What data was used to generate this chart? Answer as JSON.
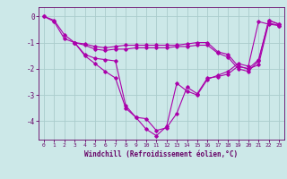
{
  "xlabel": "Windchill (Refroidissement éolien,°C)",
  "bg_color": "#cce8e8",
  "grid_color": "#aacccc",
  "line_color": "#aa00aa",
  "xlim": [
    -0.5,
    23.5
  ],
  "ylim": [
    -4.7,
    0.35
  ],
  "xticks": [
    0,
    1,
    2,
    3,
    4,
    5,
    6,
    7,
    8,
    9,
    10,
    11,
    12,
    13,
    14,
    15,
    16,
    17,
    18,
    19,
    20,
    21,
    22,
    23
  ],
  "yticks": [
    0,
    -1,
    -2,
    -3,
    -4
  ],
  "series": [
    [
      0.0,
      -0.15,
      -0.7,
      -1.0,
      -1.5,
      -1.8,
      -2.1,
      -2.35,
      -3.5,
      -3.85,
      -4.3,
      -4.55,
      -4.2,
      -2.55,
      -2.85,
      -3.0,
      -2.4,
      -2.25,
      -2.1,
      -1.8,
      -1.9,
      -0.2,
      -0.3,
      -0.35
    ],
    [
      0.0,
      -0.2,
      -0.85,
      -1.0,
      -1.45,
      -1.6,
      -1.65,
      -1.7,
      -3.4,
      -3.85,
      -3.9,
      -4.35,
      -4.25,
      -3.7,
      -2.7,
      -2.95,
      -2.35,
      -2.3,
      -2.2,
      -1.9,
      -2.0,
      -1.85,
      -0.25,
      -0.35
    ],
    [
      null,
      null,
      null,
      -1.0,
      -1.1,
      -1.25,
      -1.3,
      -1.25,
      -1.25,
      -1.2,
      -1.2,
      -1.2,
      -1.2,
      -1.15,
      -1.15,
      -1.1,
      -1.1,
      -1.4,
      -1.55,
      -2.0,
      -2.1,
      -1.7,
      -0.15,
      -0.3
    ],
    [
      null,
      null,
      null,
      -1.0,
      -1.05,
      -1.15,
      -1.2,
      -1.15,
      -1.1,
      -1.1,
      -1.1,
      -1.1,
      -1.1,
      -1.1,
      -1.05,
      -1.0,
      -1.0,
      -1.35,
      -1.45,
      -1.9,
      -2.0,
      -1.65,
      -0.15,
      -0.3
    ]
  ]
}
